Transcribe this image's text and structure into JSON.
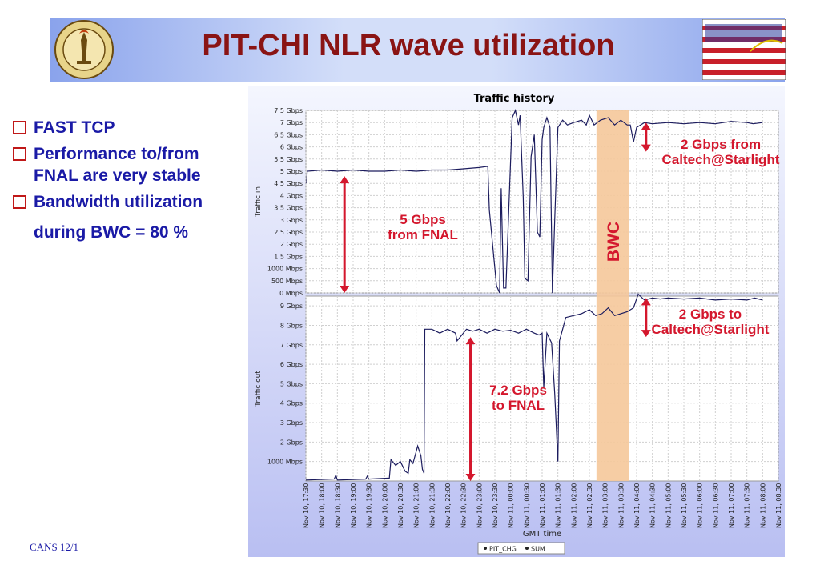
{
  "slide": {
    "title": "PIT-CHI NLR wave utilization",
    "footer": "CANS 12/1",
    "bullets": [
      {
        "lines": [
          "FAST TCP"
        ]
      },
      {
        "lines": [
          "Performance to/from",
          "FNAL are very stable"
        ]
      },
      {
        "lines": [
          "Bandwidth utilization",
          "during BWC = 80 %"
        ]
      }
    ]
  },
  "colors": {
    "title": "#8a1414",
    "bullet": "#1a1aa6",
    "annotation": "#d4172d",
    "line": "#1c1c5e",
    "bwc_band": "#f5c89a"
  },
  "chart_data": {
    "type": "line",
    "title": "Traffic history",
    "xlabel": "GMT time",
    "x_ticks": [
      "Nov 10, 17:30",
      "Nov 10, 18:00",
      "Nov 10, 18:30",
      "Nov 10, 19:00",
      "Nov 10, 19:30",
      "Nov 10, 20:00",
      "Nov 10, 20:30",
      "Nov 10, 21:00",
      "Nov 10, 21:30",
      "Nov 10, 22:00",
      "Nov 10, 22:30",
      "Nov 10, 23:00",
      "Nov 10, 23:30",
      "Nov 11, 00:00",
      "Nov 11, 00:30",
      "Nov 11, 01:00",
      "Nov 11, 01:30",
      "Nov 11, 02:00",
      "Nov 11, 02:30",
      "Nov 11, 03:00",
      "Nov 11, 03:30",
      "Nov 11, 04:00",
      "Nov 11, 04:30",
      "Nov 11, 05:00",
      "Nov 11, 05:30",
      "Nov 11, 06:00",
      "Nov 11, 06:30",
      "Nov 11, 07:00",
      "Nov 11, 07:30",
      "Nov 11, 08:00",
      "Nov 11, 08:30"
    ],
    "legend": [
      "PIT_CHG",
      "SUM"
    ],
    "legend_position": "bottom",
    "band": {
      "label": "BWC",
      "from_tick": 18.45,
      "to_tick": 20.5
    },
    "panels": [
      {
        "ylabel": "Traffic in",
        "unit": "Gbps",
        "ylim": [
          0,
          7.5
        ],
        "y_ticks": [
          {
            "v": 0,
            "label": "0 Mbps"
          },
          {
            "v": 0.5,
            "label": "500 Mbps"
          },
          {
            "v": 1,
            "label": "1000 Mbps"
          },
          {
            "v": 1.5,
            "label": "1.5 Gbps"
          },
          {
            "v": 2,
            "label": "2 Gbps"
          },
          {
            "v": 2.5,
            "label": "2.5 Gbps"
          },
          {
            "v": 3,
            "label": "3 Gbps"
          },
          {
            "v": 3.5,
            "label": "3.5 Gbps"
          },
          {
            "v": 4,
            "label": "4 Gbps"
          },
          {
            "v": 4.5,
            "label": "4.5 Gbps"
          },
          {
            "v": 5,
            "label": "5 Gbps"
          },
          {
            "v": 5.5,
            "label": "5.5 Gbps"
          },
          {
            "v": 6,
            "label": "6 Gbps"
          },
          {
            "v": 6.5,
            "label": "6.5 Gbps"
          },
          {
            "v": 7,
            "label": "7 Gbps"
          },
          {
            "v": 7.5,
            "label": "7.5 Gbps"
          }
        ],
        "series": [
          {
            "values": [
              [
                0.05,
                4.5
              ],
              [
                0.08,
                5.0
              ],
              [
                1,
                5.05
              ],
              [
                2,
                5.0
              ],
              [
                3,
                5.05
              ],
              [
                4,
                5.0
              ],
              [
                5,
                5.0
              ],
              [
                6,
                5.05
              ],
              [
                7,
                5.0
              ],
              [
                8,
                5.05
              ],
              [
                9,
                5.05
              ],
              [
                10,
                5.1
              ],
              [
                11,
                5.15
              ],
              [
                11.55,
                5.2
              ],
              [
                11.65,
                3.4
              ],
              [
                12.1,
                0.3
              ],
              [
                12.3,
                0.0
              ],
              [
                12.4,
                4.3
              ],
              [
                12.55,
                0.2
              ],
              [
                12.7,
                0.2
              ],
              [
                13.1,
                7.2
              ],
              [
                13.3,
                7.5
              ],
              [
                13.5,
                6.9
              ],
              [
                13.6,
                7.3
              ],
              [
                13.8,
                3.9
              ],
              [
                13.9,
                0.6
              ],
              [
                14.1,
                0.5
              ],
              [
                14.3,
                5.6
              ],
              [
                14.5,
                6.5
              ],
              [
                14.7,
                2.5
              ],
              [
                14.85,
                2.3
              ],
              [
                15.0,
                6.3
              ],
              [
                15.1,
                6.8
              ],
              [
                15.3,
                7.2
              ],
              [
                15.5,
                6.8
              ],
              [
                15.65,
                0.0
              ],
              [
                15.8,
                3.0
              ],
              [
                16.0,
                6.8
              ],
              [
                16.3,
                7.1
              ],
              [
                16.6,
                6.9
              ],
              [
                17,
                7.0
              ],
              [
                17.5,
                7.1
              ],
              [
                17.8,
                6.9
              ],
              [
                18.0,
                7.3
              ],
              [
                18.3,
                6.9
              ],
              [
                18.7,
                7.1
              ],
              [
                19.2,
                7.2
              ],
              [
                19.6,
                6.9
              ],
              [
                20.0,
                7.1
              ],
              [
                20.4,
                6.9
              ],
              [
                20.6,
                6.9
              ],
              [
                20.8,
                6.2
              ],
              [
                21.0,
                6.8
              ],
              [
                21.5,
                7.0
              ],
              [
                22,
                6.95
              ],
              [
                23,
                7.0
              ],
              [
                24,
                6.95
              ],
              [
                25,
                7.0
              ],
              [
                26,
                6.95
              ],
              [
                27,
                7.05
              ],
              [
                28,
                7.0
              ],
              [
                28.4,
                6.95
              ],
              [
                29.0,
                7.0
              ]
            ]
          }
        ],
        "annotations": [
          {
            "lines": [
              "5 Gbps",
              "from FNAL"
            ],
            "arrow_at_tick": 2.45,
            "arrow_from": 0,
            "arrow_to": 4.8
          },
          {
            "lines": [
              "2 Gbps from",
              "Caltech@Starlight"
            ],
            "arrow_at_tick": 21.6,
            "arrow_from": 5.8,
            "arrow_to": 7.0
          }
        ]
      },
      {
        "ylabel": "Traffic out",
        "unit": "Gbps",
        "ylim": [
          0,
          9.5
        ],
        "y_ticks": [
          {
            "v": 1,
            "label": "1000 Mbps"
          },
          {
            "v": 2,
            "label": "2 Gbps"
          },
          {
            "v": 3,
            "label": "3 Gbps"
          },
          {
            "v": 4,
            "label": "4 Gbps"
          },
          {
            "v": 5,
            "label": "5 Gbps"
          },
          {
            "v": 6,
            "label": "6 Gbps"
          },
          {
            "v": 7,
            "label": "7 Gbps"
          },
          {
            "v": 8,
            "label": "8 Gbps"
          },
          {
            "v": 9,
            "label": "9 Gbps"
          }
        ],
        "series": [
          {
            "values": [
              [
                0,
                0.05
              ],
              [
                1.8,
                0.1
              ],
              [
                1.9,
                0.3
              ],
              [
                2.0,
                0.05
              ],
              [
                3.8,
                0.1
              ],
              [
                3.9,
                0.25
              ],
              [
                4.0,
                0.1
              ],
              [
                5.3,
                0.15
              ],
              [
                5.4,
                1.1
              ],
              [
                5.7,
                0.8
              ],
              [
                6.0,
                1.0
              ],
              [
                6.3,
                0.5
              ],
              [
                6.5,
                0.4
              ],
              [
                6.6,
                1.1
              ],
              [
                6.8,
                0.9
              ],
              [
                7.1,
                1.8
              ],
              [
                7.3,
                1.3
              ],
              [
                7.4,
                0.6
              ],
              [
                7.5,
                0.4
              ],
              [
                7.55,
                7.8
              ],
              [
                8.0,
                7.8
              ],
              [
                8.5,
                7.6
              ],
              [
                9.0,
                7.8
              ],
              [
                9.5,
                7.6
              ],
              [
                9.6,
                7.2
              ],
              [
                9.9,
                7.5
              ],
              [
                10.2,
                7.8
              ],
              [
                10.6,
                7.7
              ],
              [
                11,
                7.8
              ],
              [
                11.5,
                7.6
              ],
              [
                12,
                7.8
              ],
              [
                12.5,
                7.7
              ],
              [
                13,
                7.75
              ],
              [
                13.5,
                7.6
              ],
              [
                14,
                7.8
              ],
              [
                14.5,
                7.6
              ],
              [
                14.8,
                7.5
              ],
              [
                15.0,
                7.6
              ],
              [
                15.1,
                4.8
              ],
              [
                15.3,
                7.6
              ],
              [
                15.6,
                7.1
              ],
              [
                15.8,
                4.5
              ],
              [
                16.0,
                1.0
              ],
              [
                16.1,
                7.2
              ],
              [
                16.3,
                7.8
              ],
              [
                16.5,
                8.4
              ],
              [
                17.0,
                8.5
              ],
              [
                17.5,
                8.6
              ],
              [
                18.0,
                8.8
              ],
              [
                18.4,
                8.5
              ],
              [
                18.8,
                8.6
              ],
              [
                19.2,
                8.9
              ],
              [
                19.6,
                8.5
              ],
              [
                20.0,
                8.6
              ],
              [
                20.4,
                8.7
              ],
              [
                20.8,
                8.9
              ],
              [
                21.1,
                9.6
              ],
              [
                21.5,
                9.3
              ],
              [
                22,
                9.4
              ],
              [
                22.5,
                9.35
              ],
              [
                23,
                9.4
              ],
              [
                24,
                9.35
              ],
              [
                25,
                9.4
              ],
              [
                26,
                9.3
              ],
              [
                27,
                9.35
              ],
              [
                28,
                9.3
              ],
              [
                28.5,
                9.4
              ],
              [
                29.0,
                9.3
              ]
            ]
          }
        ],
        "annotations": [
          {
            "lines": [
              "7.2 Gbps",
              "to FNAL"
            ],
            "arrow_at_tick": 10.45,
            "arrow_from": 0,
            "arrow_to": 7.4
          },
          {
            "lines": [
              "2 Gbps to",
              "Caltech@Starlight"
            ],
            "arrow_at_tick": 21.6,
            "arrow_from": 7.4,
            "arrow_to": 9.4
          }
        ]
      }
    ]
  }
}
